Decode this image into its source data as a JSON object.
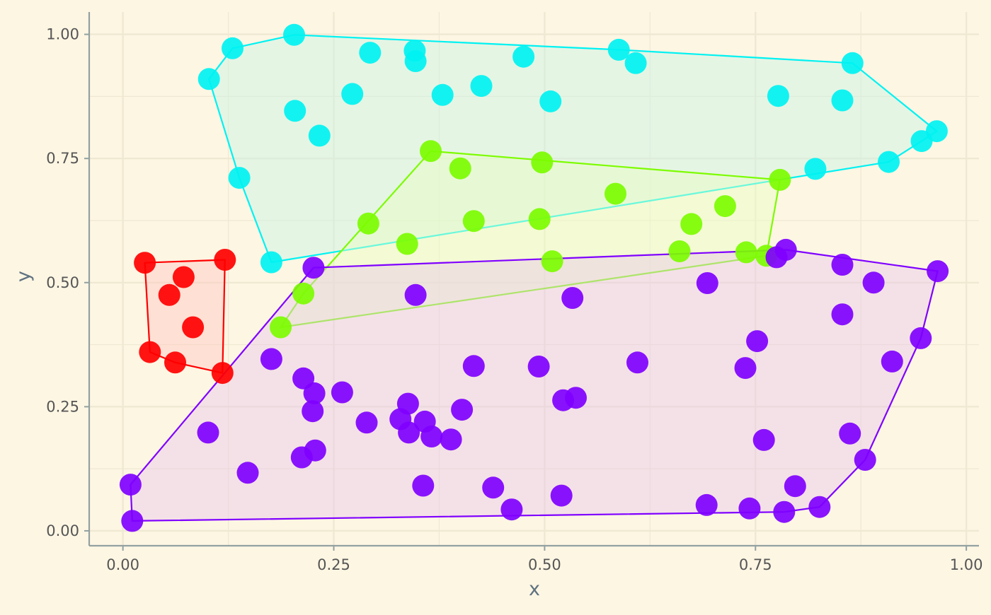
{
  "chart_data": {
    "type": "scatter",
    "title": "",
    "xlabel": "x",
    "ylabel": "y",
    "xlim": [
      -0.04,
      1.015
    ],
    "ylim": [
      -0.03,
      1.045
    ],
    "x_ticks": [
      0,
      0.25,
      0.5,
      0.75,
      1
    ],
    "x_tick_labels": [
      "0.00",
      "0.25",
      "0.50",
      "0.75",
      "1.00"
    ],
    "y_ticks": [
      0,
      0.25,
      0.5,
      0.75,
      1
    ],
    "y_tick_labels": [
      "0.00",
      "0.25",
      "0.50",
      "0.75",
      "1.00"
    ],
    "x_minor_ticks": [
      0.125,
      0.375,
      0.625,
      0.875
    ],
    "y_minor_ticks": [
      0.125,
      0.375,
      0.625,
      0.875
    ],
    "grid": true,
    "legend": "none",
    "hull": "convex hull outline with translucent fill around each group",
    "colors": {
      "background": "#fdf6e3",
      "grid": "#efe8d2",
      "axis": "#93a1a1"
    },
    "series": [
      {
        "color": "#ff0000",
        "fill": "#ffc8c0",
        "points": [
          [
            0.026,
            0.54
          ],
          [
            0.121,
            0.546
          ],
          [
            0.072,
            0.511
          ],
          [
            0.055,
            0.475
          ],
          [
            0.083,
            0.41
          ],
          [
            0.032,
            0.36
          ],
          [
            0.062,
            0.339
          ],
          [
            0.118,
            0.318
          ]
        ]
      },
      {
        "color": "#00f2f2",
        "fill": "#c8f5e4",
        "points": [
          [
            0.203,
            0.999
          ],
          [
            0.13,
            0.972
          ],
          [
            0.102,
            0.91
          ],
          [
            0.293,
            0.963
          ],
          [
            0.346,
            0.967
          ],
          [
            0.347,
            0.946
          ],
          [
            0.475,
            0.955
          ],
          [
            0.588,
            0.969
          ],
          [
            0.608,
            0.942
          ],
          [
            0.865,
            0.942
          ],
          [
            0.272,
            0.88
          ],
          [
            0.379,
            0.878
          ],
          [
            0.425,
            0.896
          ],
          [
            0.507,
            0.865
          ],
          [
            0.204,
            0.846
          ],
          [
            0.233,
            0.796
          ],
          [
            0.777,
            0.876
          ],
          [
            0.853,
            0.867
          ],
          [
            0.965,
            0.805
          ],
          [
            0.947,
            0.785
          ],
          [
            0.908,
            0.743
          ],
          [
            0.821,
            0.729
          ],
          [
            0.138,
            0.711
          ],
          [
            0.176,
            0.541
          ]
        ]
      },
      {
        "color": "#7cfc00",
        "fill": "#e8ffc0",
        "points": [
          [
            0.365,
            0.765
          ],
          [
            0.4,
            0.73
          ],
          [
            0.497,
            0.742
          ],
          [
            0.779,
            0.707
          ],
          [
            0.584,
            0.679
          ],
          [
            0.416,
            0.624
          ],
          [
            0.494,
            0.628
          ],
          [
            0.674,
            0.618
          ],
          [
            0.714,
            0.654
          ],
          [
            0.291,
            0.619
          ],
          [
            0.337,
            0.578
          ],
          [
            0.509,
            0.543
          ],
          [
            0.66,
            0.563
          ],
          [
            0.739,
            0.561
          ],
          [
            0.763,
            0.554
          ],
          [
            0.214,
            0.478
          ],
          [
            0.187,
            0.41
          ]
        ]
      },
      {
        "color": "#7f00ff",
        "fill": "#e8c8ea",
        "points": [
          [
            0.226,
            0.53
          ],
          [
            0.775,
            0.551
          ],
          [
            0.786,
            0.566
          ],
          [
            0.853,
            0.536
          ],
          [
            0.966,
            0.523
          ],
          [
            0.693,
            0.499
          ],
          [
            0.89,
            0.5
          ],
          [
            0.347,
            0.475
          ],
          [
            0.533,
            0.469
          ],
          [
            0.853,
            0.436
          ],
          [
            0.752,
            0.382
          ],
          [
            0.946,
            0.388
          ],
          [
            0.176,
            0.346
          ],
          [
            0.912,
            0.341
          ],
          [
            0.416,
            0.332
          ],
          [
            0.493,
            0.331
          ],
          [
            0.61,
            0.339
          ],
          [
            0.738,
            0.328
          ],
          [
            0.214,
            0.307
          ],
          [
            0.227,
            0.277
          ],
          [
            0.26,
            0.279
          ],
          [
            0.225,
            0.241
          ],
          [
            0.338,
            0.256
          ],
          [
            0.402,
            0.244
          ],
          [
            0.522,
            0.263
          ],
          [
            0.537,
            0.268
          ],
          [
            0.289,
            0.218
          ],
          [
            0.329,
            0.225
          ],
          [
            0.339,
            0.198
          ],
          [
            0.358,
            0.22
          ],
          [
            0.366,
            0.19
          ],
          [
            0.389,
            0.184
          ],
          [
            0.101,
            0.198
          ],
          [
            0.862,
            0.196
          ],
          [
            0.76,
            0.183
          ],
          [
            0.212,
            0.148
          ],
          [
            0.228,
            0.162
          ],
          [
            0.148,
            0.117
          ],
          [
            0.88,
            0.143
          ],
          [
            0.009,
            0.093
          ],
          [
            0.356,
            0.091
          ],
          [
            0.439,
            0.087
          ],
          [
            0.797,
            0.09
          ],
          [
            0.52,
            0.071
          ],
          [
            0.692,
            0.052
          ],
          [
            0.743,
            0.045
          ],
          [
            0.784,
            0.038
          ],
          [
            0.826,
            0.048
          ],
          [
            0.461,
            0.043
          ],
          [
            0.011,
            0.02
          ]
        ]
      }
    ]
  }
}
